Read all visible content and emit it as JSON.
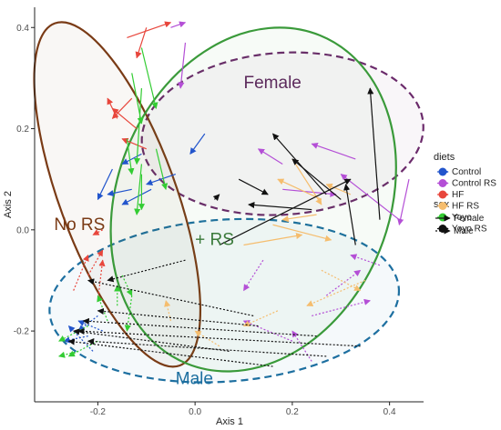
{
  "chart_data": {
    "type": "scatter",
    "subtype": "paired-arrow ordination (PCoA) with grouping ellipses",
    "xlabel": "Axis 1",
    "ylabel": "Axis 2",
    "xlim": [
      -0.33,
      0.47
    ],
    "ylim": [
      -0.34,
      0.44
    ],
    "x_ticks": [
      "-0.2",
      "0.0",
      "0.2",
      "0.4"
    ],
    "y_ticks": [
      "-0.2",
      "0.0",
      "0.2",
      "0.4"
    ],
    "x_tick_values": [
      -0.2,
      0.0,
      0.2,
      0.4
    ],
    "y_tick_values": [
      -0.2,
      0.0,
      0.2,
      0.4
    ],
    "grid": false,
    "legend_position": "right",
    "legend": {
      "diets_title": "diets",
      "diets": [
        {
          "name": "Control",
          "color": "#2255cc"
        },
        {
          "name": "Control RS",
          "color": "#b44fd6"
        },
        {
          "name": "HF",
          "color": "#e8463c"
        },
        {
          "name": "HF RS",
          "color": "#f5bd6e"
        },
        {
          "name": "Yoyo",
          "color": "#33cc33"
        },
        {
          "name": "Yoyo RS",
          "color": "#111111"
        }
      ],
      "sex_title": "sex",
      "sex": [
        {
          "name": "Female",
          "line": "solid"
        },
        {
          "name": "Male",
          "line": "dotted"
        }
      ]
    },
    "regions": [
      {
        "label": "Female",
        "color": "#6b2a6b",
        "outline": "dashed",
        "center": [
          0.18,
          0.19
        ],
        "radii": [
          0.29,
          0.16
        ],
        "angle_deg": 4
      },
      {
        "label": "Male",
        "color": "#1d6fa0",
        "outline": "dashed",
        "center": [
          0.06,
          -0.14
        ],
        "radii": [
          0.36,
          0.16
        ],
        "angle_deg": 4
      },
      {
        "label": "No RS",
        "color": "#7a3b16",
        "outline": "solid",
        "center": [
          -0.16,
          0.07
        ],
        "radii": [
          0.12,
          0.36
        ],
        "angle_deg": 20
      },
      {
        "label": "+ RS",
        "color": "#3a9a3a",
        "outline": "solid",
        "center": [
          0.12,
          0.06
        ],
        "radii": [
          0.28,
          0.35
        ],
        "angle_deg": -22
      }
    ],
    "region_labels": [
      {
        "text": "Female",
        "x": 0.1,
        "y": 0.28,
        "color": "#5c2a5c"
      },
      {
        "text": "No RS",
        "x": -0.29,
        "y": 0.0,
        "color": "#7a3b16"
      },
      {
        "text": "+ RS",
        "x": 0.0,
        "y": -0.03,
        "color": "#3a7a3a"
      },
      {
        "text": "Male",
        "x": -0.04,
        "y": -0.305,
        "color": "#1d6fa0"
      }
    ],
    "series": [
      {
        "name": "Control",
        "color": "#2255cc",
        "arrows": [
          {
            "from": [
              -0.17,
              0.12
            ],
            "to": [
              -0.2,
              0.06
            ],
            "sex": "Female"
          },
          {
            "from": [
              -0.13,
              0.08
            ],
            "to": [
              -0.18,
              0.07
            ],
            "sex": "Female"
          },
          {
            "from": [
              -0.09,
              0.08
            ],
            "to": [
              -0.15,
              0.05
            ],
            "sex": "Female"
          },
          {
            "from": [
              -0.11,
              0.15
            ],
            "to": [
              -0.15,
              0.13
            ],
            "sex": "Female"
          },
          {
            "from": [
              0.02,
              0.19
            ],
            "to": [
              -0.01,
              0.15
            ],
            "sex": "Female"
          },
          {
            "from": [
              -0.04,
              0.11
            ],
            "to": [
              -0.1,
              0.09
            ],
            "sex": "Female"
          },
          {
            "from": [
              -0.2,
              -0.17
            ],
            "to": [
              -0.24,
              -0.2
            ],
            "sex": "Male"
          },
          {
            "from": [
              -0.22,
              -0.21
            ],
            "to": [
              -0.27,
              -0.22
            ],
            "sex": "Male"
          },
          {
            "from": [
              -0.19,
              -0.2
            ],
            "to": [
              -0.24,
              -0.18
            ],
            "sex": "Male"
          },
          {
            "from": [
              -0.21,
              -0.24
            ],
            "to": [
              -0.26,
              -0.19
            ],
            "sex": "Male"
          }
        ]
      },
      {
        "name": "Control RS",
        "color": "#b44fd6",
        "arrows": [
          {
            "from": [
              -0.05,
              0.4
            ],
            "to": [
              -0.02,
              0.41
            ],
            "sex": "Female"
          },
          {
            "from": [
              -0.02,
              0.37
            ],
            "to": [
              -0.03,
              0.28
            ],
            "sex": "Female"
          },
          {
            "from": [
              0.18,
              0.13
            ],
            "to": [
              0.13,
              0.16
            ],
            "sex": "Female"
          },
          {
            "from": [
              0.33,
              0.14
            ],
            "to": [
              0.24,
              0.17
            ],
            "sex": "Female"
          },
          {
            "from": [
              0.42,
              0.02
            ],
            "to": [
              0.3,
              0.11
            ],
            "sex": "Female"
          },
          {
            "from": [
              0.44,
              0.1
            ],
            "to": [
              0.42,
              0.01
            ],
            "sex": "Female"
          },
          {
            "from": [
              0.18,
              0.08
            ],
            "to": [
              0.29,
              0.07
            ],
            "sex": "Female"
          },
          {
            "from": [
              0.38,
              -0.07
            ],
            "to": [
              0.32,
              -0.05
            ],
            "sex": "Male"
          },
          {
            "from": [
              0.27,
              -0.13
            ],
            "to": [
              0.34,
              -0.08
            ],
            "sex": "Male"
          },
          {
            "from": [
              0.24,
              -0.17
            ],
            "to": [
              0.36,
              -0.14
            ],
            "sex": "Male"
          },
          {
            "from": [
              0.24,
              -0.26
            ],
            "to": [
              0.2,
              -0.2
            ],
            "sex": "Male"
          },
          {
            "from": [
              0.14,
              -0.06
            ],
            "to": [
              0.1,
              -0.12
            ],
            "sex": "Male"
          },
          {
            "from": [
              0.2,
              -0.22
            ],
            "to": [
              0.1,
              -0.18
            ],
            "sex": "Male"
          }
        ]
      },
      {
        "name": "HF",
        "color": "#e8463c",
        "arrows": [
          {
            "from": [
              -0.14,
              0.38
            ],
            "to": [
              -0.05,
              0.41
            ],
            "sex": "Female"
          },
          {
            "from": [
              -0.1,
              0.4
            ],
            "to": [
              -0.12,
              0.34
            ],
            "sex": "Female"
          },
          {
            "from": [
              -0.16,
              0.22
            ],
            "to": [
              -0.18,
              0.26
            ],
            "sex": "Female"
          },
          {
            "from": [
              -0.12,
              0.2
            ],
            "to": [
              -0.17,
              0.24
            ],
            "sex": "Female"
          },
          {
            "from": [
              -0.13,
              0.26
            ],
            "to": [
              -0.17,
              0.22
            ],
            "sex": "Female"
          },
          {
            "from": [
              -0.1,
              0.16
            ],
            "to": [
              -0.15,
              0.18
            ],
            "sex": "Female"
          },
          {
            "from": [
              -0.19,
              0.0
            ],
            "to": [
              -0.21,
              -0.01
            ],
            "sex": "Male"
          },
          {
            "from": [
              -0.22,
              -0.09
            ],
            "to": [
              -0.19,
              -0.04
            ],
            "sex": "Male"
          },
          {
            "from": [
              -0.25,
              -0.12
            ],
            "to": [
              -0.22,
              -0.05
            ],
            "sex": "Male"
          },
          {
            "from": [
              -0.2,
              -0.14
            ],
            "to": [
              -0.19,
              -0.06
            ],
            "sex": "Male"
          }
        ]
      },
      {
        "name": "HF RS",
        "color": "#f5bd6e",
        "arrows": [
          {
            "from": [
              0.26,
              0.06
            ],
            "to": [
              0.17,
              0.1
            ],
            "sex": "Female"
          },
          {
            "from": [
              0.2,
              0.14
            ],
            "to": [
              0.26,
              0.05
            ],
            "sex": "Female"
          },
          {
            "from": [
              0.32,
              0.07
            ],
            "to": [
              0.27,
              0.09
            ],
            "sex": "Female"
          },
          {
            "from": [
              0.16,
              0.01
            ],
            "to": [
              0.28,
              -0.02
            ],
            "sex": "Female"
          },
          {
            "from": [
              0.25,
              0.03
            ],
            "to": [
              0.18,
              0.02
            ],
            "sex": "Female"
          },
          {
            "from": [
              0.1,
              -0.03
            ],
            "to": [
              0.22,
              -0.01
            ],
            "sex": "Female"
          },
          {
            "from": [
              0.26,
              -0.08
            ],
            "to": [
              0.34,
              -0.12
            ],
            "sex": "Male"
          },
          {
            "from": [
              0.35,
              -0.1
            ],
            "to": [
              0.23,
              -0.15
            ],
            "sex": "Male"
          },
          {
            "from": [
              0.17,
              -0.16
            ],
            "to": [
              0.1,
              -0.19
            ],
            "sex": "Male"
          },
          {
            "from": [
              0.05,
              -0.23
            ],
            "to": [
              0.0,
              -0.2
            ],
            "sex": "Male"
          },
          {
            "from": [
              -0.05,
              -0.18
            ],
            "to": [
              -0.06,
              -0.14
            ],
            "sex": "Male"
          }
        ]
      },
      {
        "name": "Yoyo",
        "color": "#33cc33",
        "arrows": [
          {
            "from": [
              -0.11,
              0.36
            ],
            "to": [
              -0.08,
              0.24
            ],
            "sex": "Female"
          },
          {
            "from": [
              -0.13,
              0.31
            ],
            "to": [
              -0.11,
              0.21
            ],
            "sex": "Female"
          },
          {
            "from": [
              -0.11,
              0.28
            ],
            "to": [
              -0.12,
              0.13
            ],
            "sex": "Female"
          },
          {
            "from": [
              -0.08,
              0.16
            ],
            "to": [
              -0.06,
              0.08
            ],
            "sex": "Female"
          },
          {
            "from": [
              -0.11,
              0.13
            ],
            "to": [
              -0.12,
              0.03
            ],
            "sex": "Female"
          },
          {
            "from": [
              -0.14,
              0.18
            ],
            "to": [
              -0.13,
              0.11
            ],
            "sex": "Female"
          },
          {
            "from": [
              -0.11,
              0.11
            ],
            "to": [
              -0.11,
              0.04
            ],
            "sex": "Female"
          },
          {
            "from": [
              -0.15,
              -0.09
            ],
            "to": [
              -0.13,
              -0.13
            ],
            "sex": "Male"
          },
          {
            "from": [
              -0.13,
              -0.13
            ],
            "to": [
              -0.14,
              -0.2
            ],
            "sex": "Male"
          },
          {
            "from": [
              -0.22,
              -0.19
            ],
            "to": [
              -0.28,
              -0.22
            ],
            "sex": "Male"
          },
          {
            "from": [
              -0.2,
              -0.22
            ],
            "to": [
              -0.26,
              -0.25
            ],
            "sex": "Male"
          },
          {
            "from": [
              -0.24,
              -0.24
            ],
            "to": [
              -0.28,
              -0.25
            ],
            "sex": "Male"
          },
          {
            "from": [
              -0.18,
              -0.18
            ],
            "to": [
              -0.2,
              -0.13
            ],
            "sex": "Male"
          },
          {
            "from": [
              -0.16,
              -0.15
            ],
            "to": [
              -0.16,
              -0.11
            ],
            "sex": "Male"
          }
        ]
      },
      {
        "name": "Yoyo RS",
        "color": "#111111",
        "arrows": [
          {
            "from": [
              0.09,
              0.1
            ],
            "to": [
              0.15,
              0.07
            ],
            "sex": "Female"
          },
          {
            "from": [
              0.27,
              0.07
            ],
            "to": [
              0.16,
              0.19
            ],
            "sex": "Female"
          },
          {
            "from": [
              0.38,
              0.02
            ],
            "to": [
              0.36,
              0.28
            ],
            "sex": "Female"
          },
          {
            "from": [
              0.3,
              0.06
            ],
            "to": [
              0.2,
              0.14
            ],
            "sex": "Female"
          },
          {
            "from": [
              0.04,
              0.06
            ],
            "to": [
              0.05,
              0.07
            ],
            "sex": "Female"
          },
          {
            "from": [
              0.05,
              -0.03
            ],
            "to": [
              0.32,
              0.1
            ],
            "sex": "Female"
          },
          {
            "from": [
              0.24,
              0.04
            ],
            "to": [
              0.11,
              0.05
            ],
            "sex": "Female"
          },
          {
            "from": [
              0.33,
              -0.03
            ],
            "to": [
              0.31,
              0.09
            ],
            "sex": "Female"
          },
          {
            "from": [
              -0.02,
              -0.06
            ],
            "to": [
              -0.18,
              -0.1
            ],
            "sex": "Male"
          },
          {
            "from": [
              0.12,
              -0.17
            ],
            "to": [
              -0.22,
              -0.1
            ],
            "sex": "Male"
          },
          {
            "from": [
              0.25,
              -0.21
            ],
            "to": [
              -0.23,
              -0.18
            ],
            "sex": "Male"
          },
          {
            "from": [
              0.34,
              -0.23
            ],
            "to": [
              -0.24,
              -0.2
            ],
            "sex": "Male"
          },
          {
            "from": [
              0.27,
              -0.25
            ],
            "to": [
              -0.22,
              -0.22
            ],
            "sex": "Male"
          },
          {
            "from": [
              0.16,
              -0.27
            ],
            "to": [
              -0.26,
              -0.22
            ],
            "sex": "Male"
          },
          {
            "from": [
              0.07,
              -0.24
            ],
            "to": [
              -0.25,
              -0.2
            ],
            "sex": "Male"
          },
          {
            "from": [
              0.13,
              -0.19
            ],
            "to": [
              -0.2,
              -0.16
            ],
            "sex": "Male"
          }
        ]
      }
    ]
  }
}
